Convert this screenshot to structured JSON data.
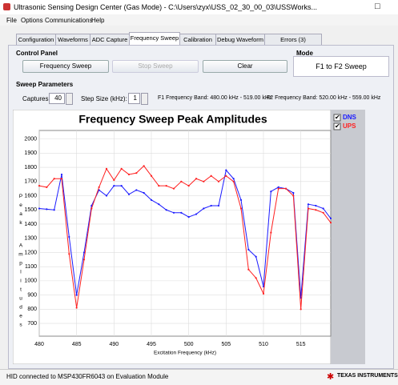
{
  "window": {
    "title": "Ultrasonic Sensing Design Center (Gas Mode) - C:\\Users\\zyx\\USS_02_30_00_03\\USSWorks..."
  },
  "menu": [
    "File",
    "Options",
    "Communications",
    "Help"
  ],
  "tabs": [
    "Configuration",
    "Waveforms",
    "ADC Capture",
    "Frequency Sweep",
    "Calibration",
    "Debug Waveform",
    "Errors (3)"
  ],
  "control_panel": {
    "title": "Control Panel",
    "buttons": [
      "Frequency Sweep",
      "Stop Sweep",
      "Clear"
    ]
  },
  "mode": {
    "title": "Mode",
    "value": "F1 to F2 Sweep"
  },
  "sweep_parameters": {
    "title": "Sweep Parameters",
    "captures_label": "Captures:",
    "captures": 40,
    "step_label": "Step Size (kHz):",
    "step": 1,
    "f1": "F1 Frequency Band: 480.00 kHz - 519.00 kHz",
    "f2": "F2 Frequency Band: 520.00 kHz - 559.00 kHz"
  },
  "status": {
    "text": "HID connected to MSP430FR6043 on Evaluation Module",
    "logo": "TEXAS INSTRUMENTS"
  },
  "chart_data": {
    "type": "line",
    "title": "Frequency Sweep Peak Amplitudes",
    "xlabel": "Excitation Frequency (kHz)",
    "ylabel": "Peak Amplitudes",
    "x": [
      480,
      481,
      482,
      483,
      484,
      485,
      486,
      487,
      488,
      489,
      490,
      491,
      492,
      493,
      494,
      495,
      496,
      497,
      498,
      499,
      500,
      501,
      502,
      503,
      504,
      505,
      506,
      507,
      508,
      509,
      510,
      511,
      512,
      513,
      514,
      515,
      516,
      517,
      518,
      519
    ],
    "series": [
      {
        "name": "DNS",
        "color": "#1a1aff",
        "values": [
          1510,
          1505,
          1500,
          1750,
          1310,
          900,
          1200,
          1530,
          1640,
          1600,
          1670,
          1670,
          1610,
          1640,
          1620,
          1570,
          1540,
          1500,
          1480,
          1480,
          1450,
          1470,
          1510,
          1530,
          1530,
          1780,
          1720,
          1570,
          1220,
          1170,
          960,
          1630,
          1660,
          1650,
          1620,
          880,
          1540,
          1530,
          1510,
          1440
        ]
      },
      {
        "name": "UPS",
        "color": "#ff2020",
        "values": [
          1670,
          1660,
          1720,
          1720,
          1190,
          810,
          1150,
          1510,
          1660,
          1790,
          1710,
          1790,
          1750,
          1760,
          1810,
          1740,
          1670,
          1670,
          1650,
          1700,
          1670,
          1720,
          1700,
          1740,
          1700,
          1740,
          1700,
          1510,
          1080,
          1020,
          910,
          1340,
          1650,
          1650,
          1600,
          800,
          1510,
          1500,
          1480,
          1410
        ]
      }
    ],
    "xlim": [
      480,
      519
    ],
    "xticks": [
      480,
      485,
      490,
      495,
      500,
      505,
      510,
      515
    ],
    "ylim": [
      610,
      2060
    ],
    "yticks": [
      700,
      800,
      900,
      1000,
      1100,
      1200,
      1300,
      1400,
      1500,
      1600,
      1700,
      1800,
      1900,
      2000
    ],
    "grid": true
  }
}
